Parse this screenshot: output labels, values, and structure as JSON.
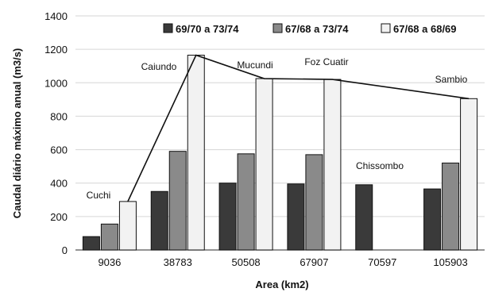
{
  "chart_data": {
    "type": "bar",
    "xlabel": "Area (km2)",
    "ylabel": "Caudal diário máximo anual (m3/s)",
    "categories": [
      "9036",
      "38783",
      "50508",
      "67907",
      "70597",
      "105903"
    ],
    "ylim": [
      0,
      1400
    ],
    "yticks": [
      0,
      200,
      400,
      600,
      800,
      1000,
      1200,
      1400
    ],
    "grid": true,
    "legend_position": "top-right",
    "series": [
      {
        "name": "69/70 a 73/74",
        "color": "#3a3a3a",
        "values": [
          80,
          350,
          400,
          395,
          390,
          365
        ]
      },
      {
        "name": "67/68 a 73/74",
        "color": "#8a8a8a",
        "values": [
          155,
          590,
          575,
          570,
          null,
          520
        ]
      },
      {
        "name": "67/68 a 68/69",
        "color": "#f2f2f2",
        "values": [
          290,
          1165,
          1025,
          1020,
          null,
          905
        ]
      }
    ],
    "annotations": [
      "Cuchi",
      "Caiundo",
      "Mucundi",
      "Foz Cuatir",
      "Chissombo",
      "Sambio"
    ],
    "envelope_line": {
      "points": [
        {
          "x": "9036",
          "y": 290
        },
        {
          "x": "38783",
          "y": 1165
        },
        {
          "x": "50508",
          "y": 1025
        },
        {
          "x": "67907",
          "y": 1020
        },
        {
          "x": "105903",
          "y": 905
        }
      ]
    }
  }
}
